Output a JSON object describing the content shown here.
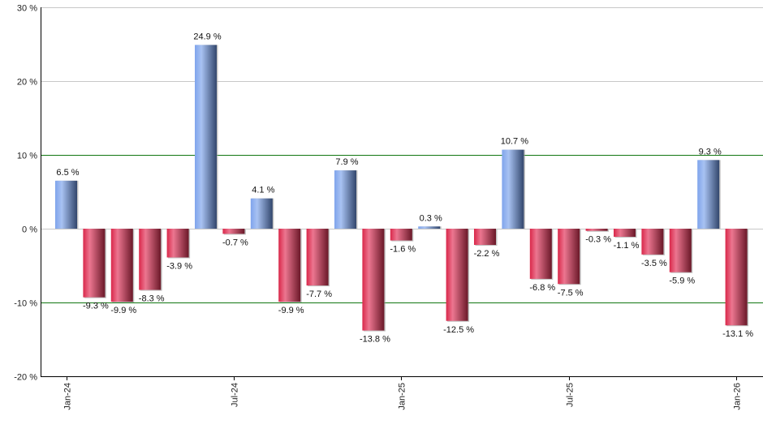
{
  "chart_data": {
    "type": "bar",
    "title": "",
    "xlabel": "",
    "ylabel": "",
    "ylim": [
      -20,
      30
    ],
    "y_ticks": [
      30,
      20,
      10,
      0,
      -10,
      -20
    ],
    "y_tick_labels": [
      "30 %",
      "20 %",
      "10 %",
      "0 %",
      "-10 %",
      "-20 %"
    ],
    "x_tick_labels": [
      {
        "index": 0,
        "label": "Jan-24"
      },
      {
        "index": 6,
        "label": "Jul-24"
      },
      {
        "index": 12,
        "label": "Jan-25"
      },
      {
        "index": 18,
        "label": "Jul-25"
      },
      {
        "index": 24,
        "label": "Jan-26"
      }
    ],
    "categories": [
      "Jan-24",
      "Feb-24",
      "Mar-24",
      "Apr-24",
      "May-24",
      "Jun-24",
      "Jul-24",
      "Aug-24",
      "Sep-24",
      "Oct-24",
      "Nov-24",
      "Dec-24",
      "Jan-25",
      "Feb-25",
      "Mar-25",
      "Apr-25",
      "May-25",
      "Jun-25",
      "Jul-25",
      "Aug-25",
      "Sep-25",
      "Oct-25",
      "Nov-25",
      "Dec-25",
      "Jan-26"
    ],
    "values": [
      6.5,
      -9.3,
      -9.9,
      -8.3,
      -3.9,
      24.9,
      -0.7,
      4.1,
      -9.9,
      -7.7,
      7.9,
      -13.8,
      -1.6,
      0.3,
      -12.5,
      -2.2,
      10.7,
      -6.8,
      -7.5,
      -0.3,
      -1.1,
      -3.5,
      -5.9,
      9.3,
      -13.1
    ],
    "data_labels": [
      "6.5 %",
      "-9.3 %",
      "-9.9 %",
      "-8.3 %",
      "-3.9 %",
      "24.9 %",
      "-0.7 %",
      "4.1 %",
      "-9.9 %",
      "-7.7 %",
      "7.9 %",
      "-13.8 %",
      "-1.6 %",
      "0.3 %",
      "-12.5 %",
      "-2.2 %",
      "10.7 %",
      "-6.8 %",
      "-7.5 %",
      "-0.3 %",
      "-1.1 %",
      "-3.5 %",
      "-5.9 %",
      "9.3 %",
      "-13.1 %"
    ],
    "reference_lines": [
      10,
      -10
    ],
    "grid": true,
    "legend": null
  },
  "colors": {
    "positive_light": "#8fb0ee",
    "positive_dark": "#34496e",
    "negative_light": "#e8718a",
    "negative_dark": "#6e1a2c",
    "negative_edge": "#d9284a",
    "reference_line": "#117711",
    "grid": "#c8c8c8",
    "axis": "#000000"
  }
}
